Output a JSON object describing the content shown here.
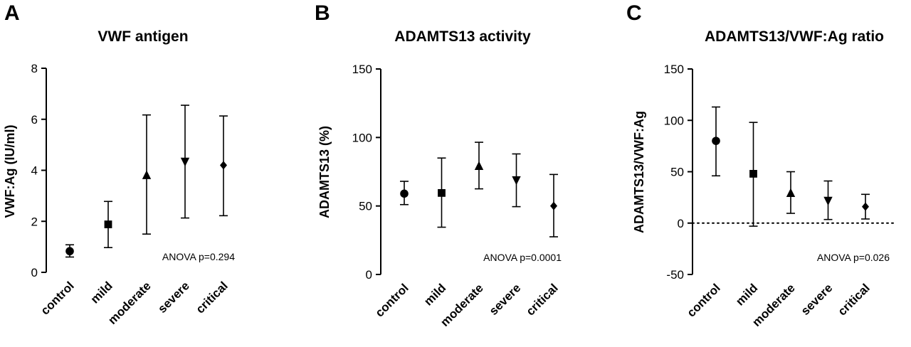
{
  "chart_data": [
    {
      "panel": "A",
      "type": "scatter",
      "title": "VWF antigen",
      "ylabel": "VWF:Ag (IU/ml)",
      "categories": [
        "control",
        "mild",
        "moderate",
        "severe",
        "critical"
      ],
      "markers": [
        "circle",
        "square",
        "triangle-up",
        "triangle-down",
        "diamond"
      ],
      "values": [
        0.83,
        1.88,
        3.8,
        4.35,
        4.2
      ],
      "error_low": [
        0.6,
        0.97,
        1.5,
        2.13,
        2.22
      ],
      "error_high": [
        1.08,
        2.78,
        6.17,
        6.55,
        6.13
      ],
      "ylim": [
        0,
        8
      ],
      "yticks": [
        0,
        2,
        4,
        6,
        8
      ],
      "annotation": "ANOVA p=0.294",
      "reference_line": null
    },
    {
      "panel": "B",
      "type": "scatter",
      "title": "ADAMTS13 activity",
      "ylabel": "ADAMTS13 (%)",
      "categories": [
        "control",
        "mild",
        "moderate",
        "severe",
        "critical"
      ],
      "markers": [
        "circle",
        "square",
        "triangle-up",
        "triangle-down",
        "diamond"
      ],
      "values": [
        59,
        59.5,
        79,
        69,
        50
      ],
      "error_low": [
        51,
        34.5,
        62.5,
        49.5,
        27.5
      ],
      "error_high": [
        68,
        85,
        96.5,
        88,
        73
      ],
      "ylim": [
        0,
        150
      ],
      "yticks": [
        0,
        50,
        100,
        150
      ],
      "annotation": "ANOVA p=0.0001",
      "reference_line": null
    },
    {
      "panel": "C",
      "type": "scatter",
      "title": "ADAMTS13/VWF:Ag ratio",
      "ylabel": "ADAMTS13/VWF:Ag",
      "categories": [
        "control",
        "mild",
        "moderate",
        "severe",
        "critical"
      ],
      "markers": [
        "circle",
        "square",
        "triangle-up",
        "triangle-down",
        "diamond"
      ],
      "values": [
        80,
        48,
        29,
        22,
        16
      ],
      "error_low": [
        46,
        -3,
        9.5,
        3.5,
        4
      ],
      "error_high": [
        113,
        98,
        50,
        41,
        28
      ],
      "ylim": [
        -50,
        150
      ],
      "yticks": [
        -50,
        0,
        50,
        100,
        150
      ],
      "annotation": "ANOVA p=0.026",
      "reference_line": 0
    }
  ]
}
